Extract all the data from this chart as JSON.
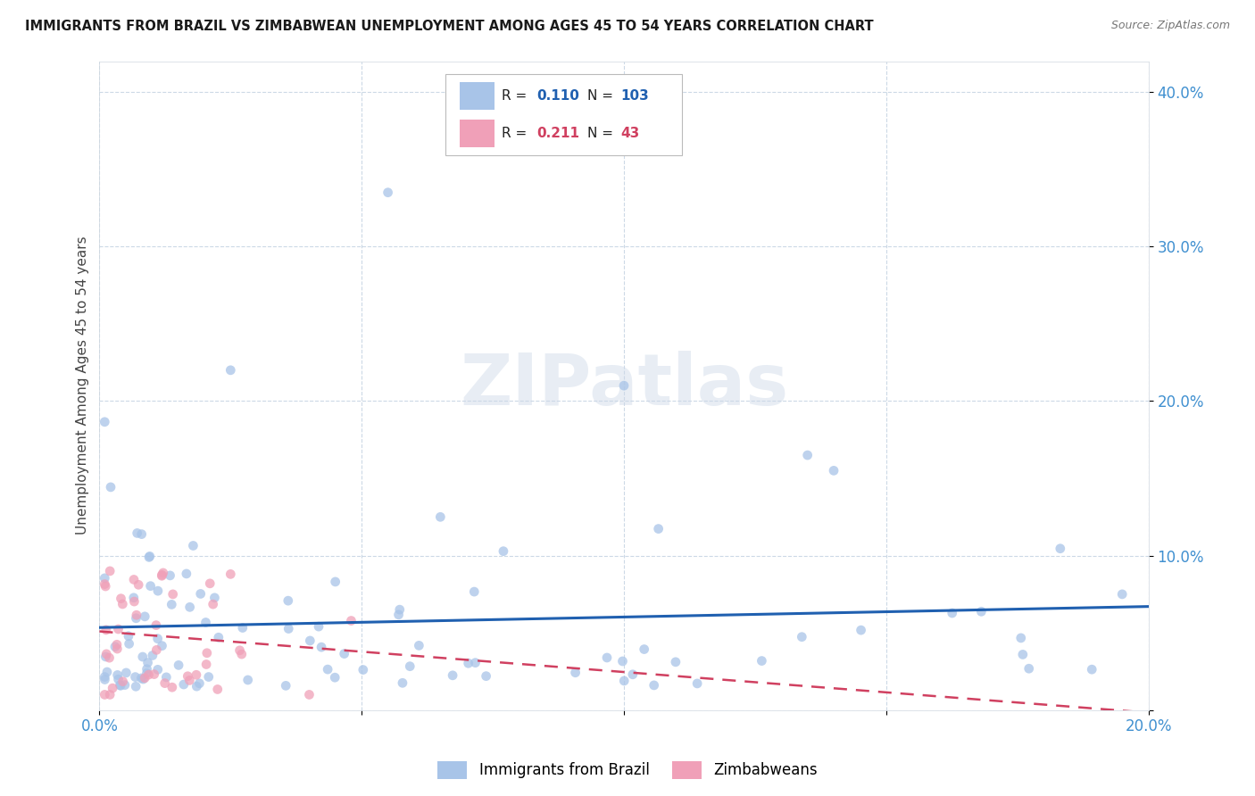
{
  "title": "IMMIGRANTS FROM BRAZIL VS ZIMBABWEAN UNEMPLOYMENT AMONG AGES 45 TO 54 YEARS CORRELATION CHART",
  "source": "Source: ZipAtlas.com",
  "ylabel": "Unemployment Among Ages 45 to 54 years",
  "xlim": [
    0.0,
    0.2
  ],
  "ylim": [
    0.0,
    0.42
  ],
  "xticks": [
    0.0,
    0.05,
    0.1,
    0.15,
    0.2
  ],
  "xtick_labels": [
    "0.0%",
    "",
    "",
    "",
    "20.0%"
  ],
  "yticks": [
    0.0,
    0.1,
    0.2,
    0.3,
    0.4
  ],
  "ytick_labels": [
    "",
    "10.0%",
    "20.0%",
    "30.0%",
    "40.0%"
  ],
  "brazil_color": "#a8c4e8",
  "zimbabwe_color": "#f0a0b8",
  "brazil_line_color": "#2060b0",
  "zimbabwe_line_color": "#d04060",
  "tick_color": "#4090d0",
  "brazil_R": 0.11,
  "brazil_N": 103,
  "zimbabwe_R": 0.211,
  "zimbabwe_N": 43,
  "legend_brazil_label": "Immigrants from Brazil",
  "legend_zimbabwe_label": "Zimbabweans",
  "watermark": "ZIPatlas"
}
